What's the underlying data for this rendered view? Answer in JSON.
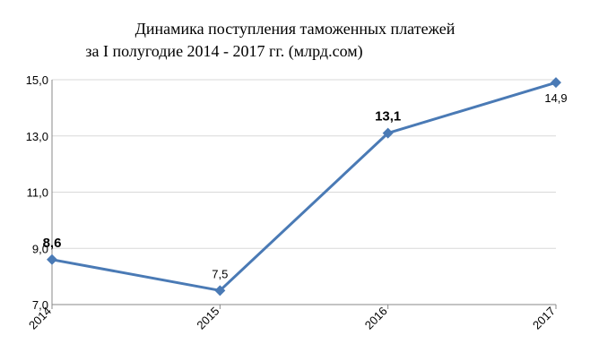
{
  "chart_data": {
    "type": "line",
    "title_line1": "Динамика поступления таможенных платежей",
    "title_line2": "за I полугодие 2014 - 2017 гг.  (млрд.сом)",
    "categories": [
      "2014",
      "2015",
      "2016",
      "2017"
    ],
    "series": [
      {
        "values": [
          8.6,
          7.5,
          13.1,
          14.9
        ],
        "color": "#4a7ab5"
      }
    ],
    "data_labels": [
      "8,6",
      "7,5",
      "13,1",
      "14,9"
    ],
    "data_label_bold": [
      true,
      false,
      true,
      false
    ],
    "y_ticks": [
      "7,0",
      "9,0",
      "11,0",
      "13,0",
      "15,0"
    ],
    "y_tick_values": [
      7,
      9,
      11,
      13,
      15
    ],
    "ylim": [
      7,
      15
    ],
    "grid": true,
    "grid_color": "#d9d9d9",
    "marker": "diamond"
  }
}
